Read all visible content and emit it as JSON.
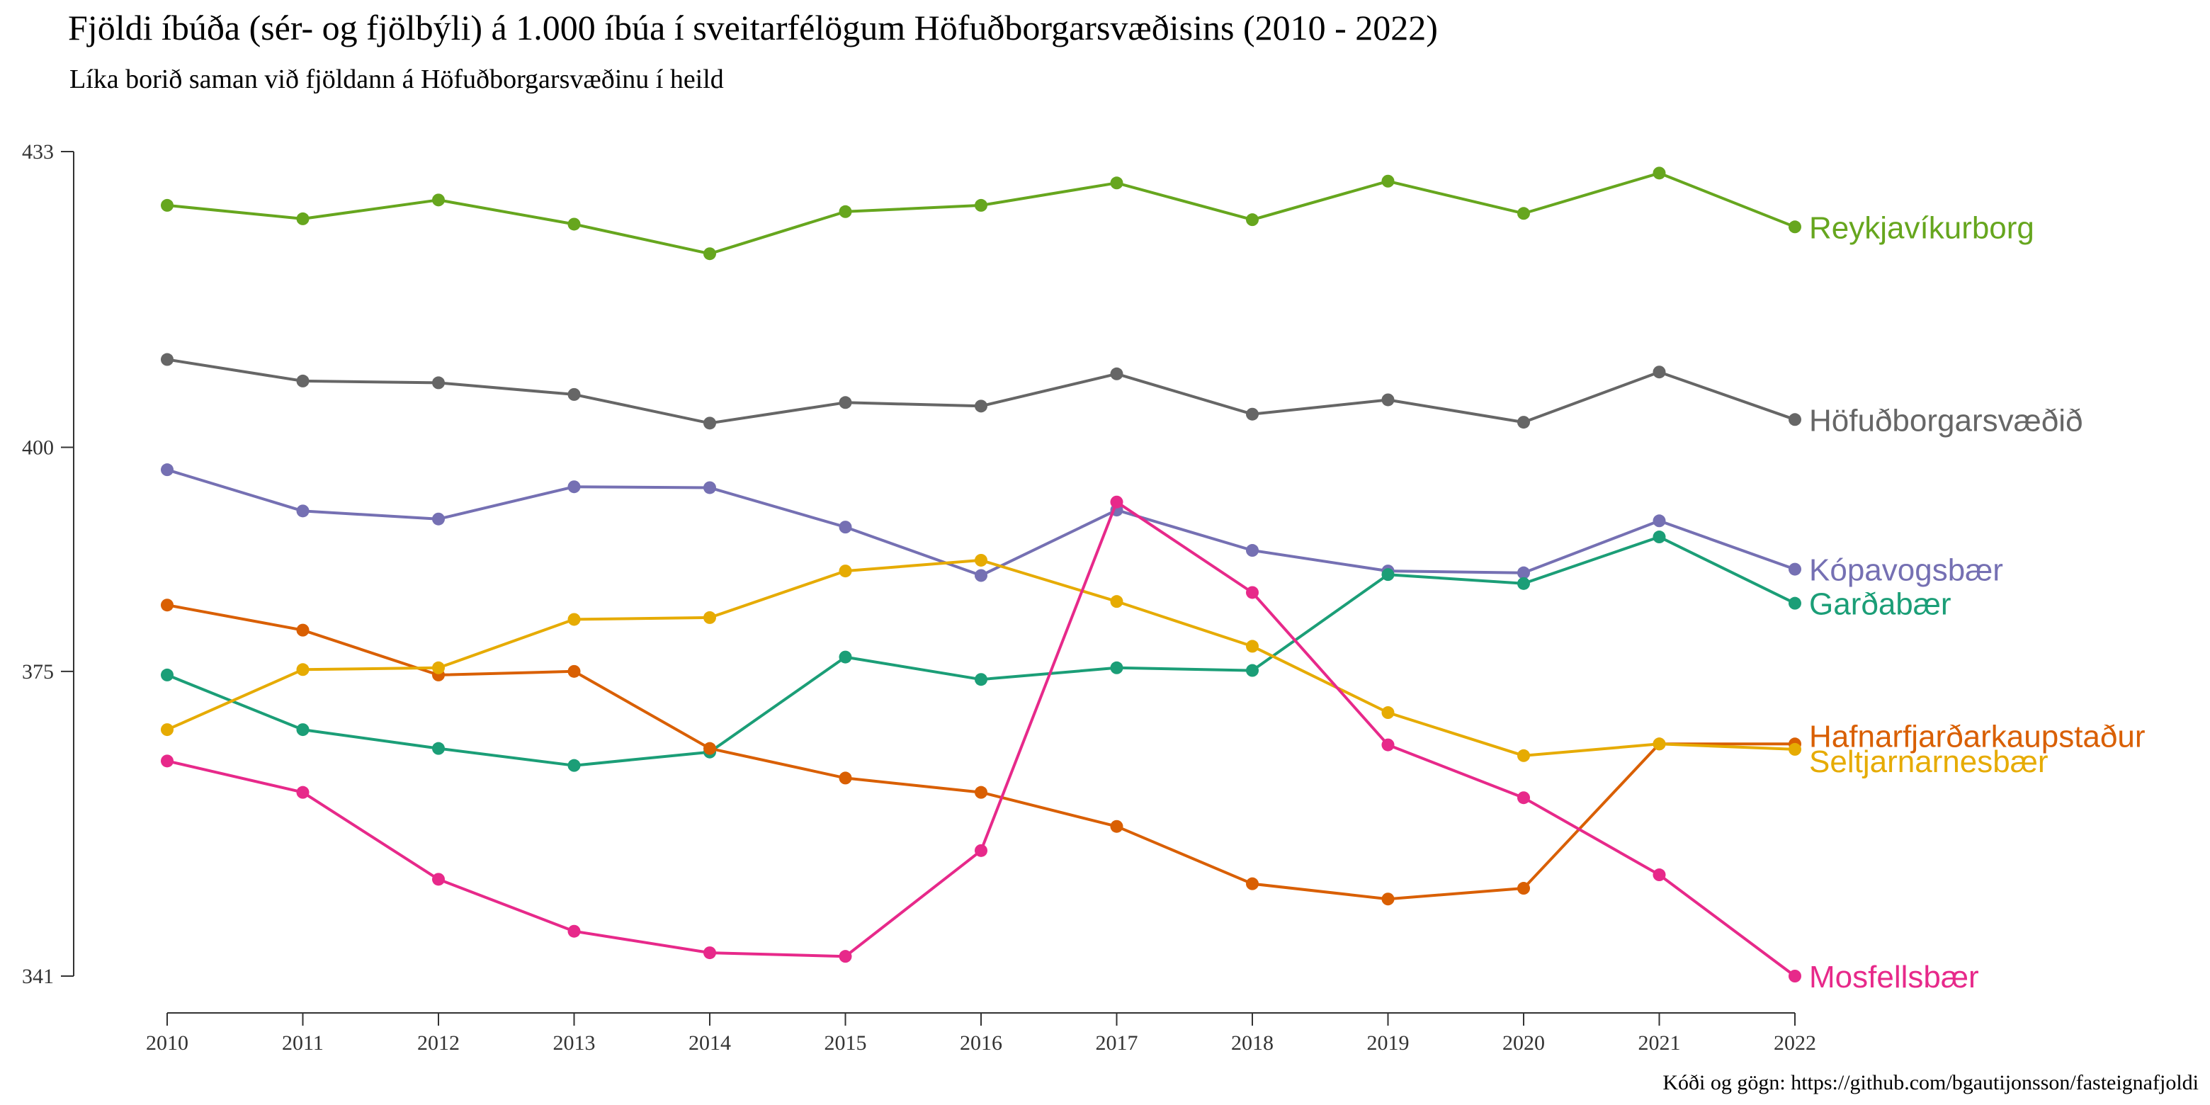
{
  "chart_data": {
    "type": "line",
    "title": "Fjöldi íbúða (sér- og fjölbýli) á 1.000 íbúa í sveitarfélögum Höfuðborgarsvæðisins (2010 - 2022)",
    "subtitle": "Líka borið saman við fjöldann á Höfuðborgarsvæðinu í heild",
    "caption": "Kóði og gögn: https://github.com/bgautijonsson/fasteignafjoldi",
    "xlabel": "",
    "ylabel": "",
    "x": [
      2010,
      2011,
      2012,
      2013,
      2014,
      2015,
      2016,
      2017,
      2018,
      2019,
      2020,
      2021,
      2022
    ],
    "x_tick_labels": [
      "2010",
      "2011",
      "2012",
      "2013",
      "2014",
      "2015",
      "2016",
      "2017",
      "2018",
      "2019",
      "2020",
      "2021",
      "2022"
    ],
    "y_ticks": [
      341,
      375,
      400,
      433
    ],
    "y_tick_labels": [
      "341",
      "375",
      "400",
      "433"
    ],
    "ylim": [
      341,
      433
    ],
    "grid": false,
    "legend": "direct labels at line ends (right)",
    "series": [
      {
        "name": "Reykjavíkurborg",
        "color": "#66A61E",
        "values": [
          427.0,
          425.5,
          427.6,
          424.9,
          421.6,
          426.3,
          427.0,
          429.5,
          425.4,
          429.7,
          426.1,
          430.6,
          424.6
        ]
      },
      {
        "name": "Höfuðborgarsvæðið",
        "color": "#666666",
        "values": [
          409.8,
          407.4,
          407.2,
          405.9,
          402.7,
          405.0,
          404.6,
          408.2,
          403.7,
          405.3,
          402.8,
          408.4,
          403.1
        ]
      },
      {
        "name": "Kópavogsbær",
        "color": "#7570B3",
        "values": [
          397.5,
          392.9,
          392.0,
          395.6,
          395.5,
          391.1,
          385.7,
          393.0,
          388.5,
          386.2,
          386.0,
          391.8,
          386.4
        ]
      },
      {
        "name": "Garðabær",
        "color": "#1B9E77",
        "values": [
          374.6,
          368.5,
          366.4,
          364.5,
          366.0,
          376.6,
          374.1,
          375.4,
          375.1,
          385.8,
          384.8,
          390.0,
          382.6
        ]
      },
      {
        "name": "Hafnarfjarðarkaupstaður",
        "color": "#D95F02",
        "values": [
          382.4,
          379.6,
          374.6,
          375.0,
          366.4,
          363.1,
          361.5,
          357.7,
          351.3,
          349.6,
          350.8,
          366.9,
          366.9
        ]
      },
      {
        "name": "Seltjarnarnesbær",
        "color": "#E6AB02",
        "values": [
          368.5,
          375.2,
          375.4,
          380.8,
          381.0,
          386.2,
          387.4,
          382.8,
          377.8,
          370.4,
          365.6,
          366.9,
          366.3
        ]
      },
      {
        "name": "Mosfellsbær",
        "color": "#E7298A",
        "values": [
          365.0,
          361.5,
          351.8,
          346.0,
          343.6,
          343.2,
          355.0,
          393.9,
          383.8,
          366.8,
          360.9,
          352.3,
          341.0
        ]
      }
    ]
  }
}
